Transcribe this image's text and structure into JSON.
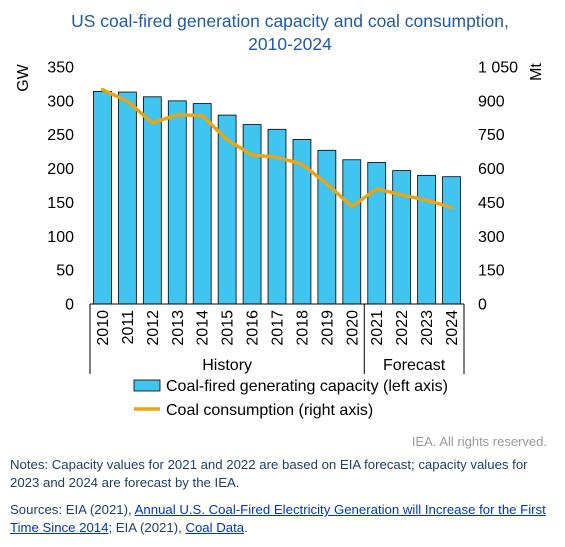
{
  "chart_data": {
    "type": "bar+line",
    "title_line1": "US coal-fired generation capacity and coal consumption,",
    "title_line2": "2010-2024",
    "categories": [
      "2010",
      "2011",
      "2012",
      "2013",
      "2014",
      "2015",
      "2016",
      "2017",
      "2018",
      "2019",
      "2020",
      "2021",
      "2022",
      "2023",
      "2024"
    ],
    "groups": [
      {
        "label": "History",
        "from": 0,
        "to": 10
      },
      {
        "label": "Forecast",
        "from": 11,
        "to": 14
      }
    ],
    "left_axis": {
      "label": "GW",
      "range": [
        0,
        350
      ],
      "ticks": [
        0,
        50,
        100,
        150,
        200,
        250,
        300,
        350
      ],
      "tick_labels": [
        "0",
        "50",
        "100",
        "150",
        "200",
        "250",
        "300",
        "350"
      ]
    },
    "right_axis": {
      "label": "Mt",
      "range": [
        0,
        1050
      ],
      "ticks": [
        0,
        150,
        300,
        450,
        600,
        750,
        900,
        1050
      ],
      "tick_labels": [
        "0",
        "150",
        "300",
        "450",
        "600",
        "750",
        "900",
        "1 050"
      ]
    },
    "series": [
      {
        "name": "Coal-fired generating capacity (left axis)",
        "type": "bar",
        "axis": "left",
        "color": "#3FC5F0",
        "values": [
          314,
          313,
          306,
          300,
          296,
          279,
          265,
          258,
          243,
          227,
          213,
          209,
          197,
          190,
          188
        ]
      },
      {
        "name": "Coal consumption (right axis)",
        "type": "line",
        "axis": "right",
        "color": "#EAA416",
        "values": [
          950,
          898,
          803,
          838,
          835,
          728,
          660,
          650,
          620,
          533,
          432,
          510,
          484,
          460,
          428
        ]
      }
    ],
    "grid": false,
    "legend_position": "bottom"
  },
  "credit": "IEA. All rights reserved.",
  "notes": "Notes: Capacity values for 2021 and 2022 are based on EIA forecast; capacity values for 2023 and 2024 are forecast by the IEA.",
  "sources": {
    "prefix": "Sources: EIA (2021), ",
    "link1": "Annual U.S. Coal-Fired Electricity Generation will Increase for the First Time Since 2014",
    "middle": "; EIA (2021), ",
    "link2": "Coal Data",
    "suffix": "."
  }
}
